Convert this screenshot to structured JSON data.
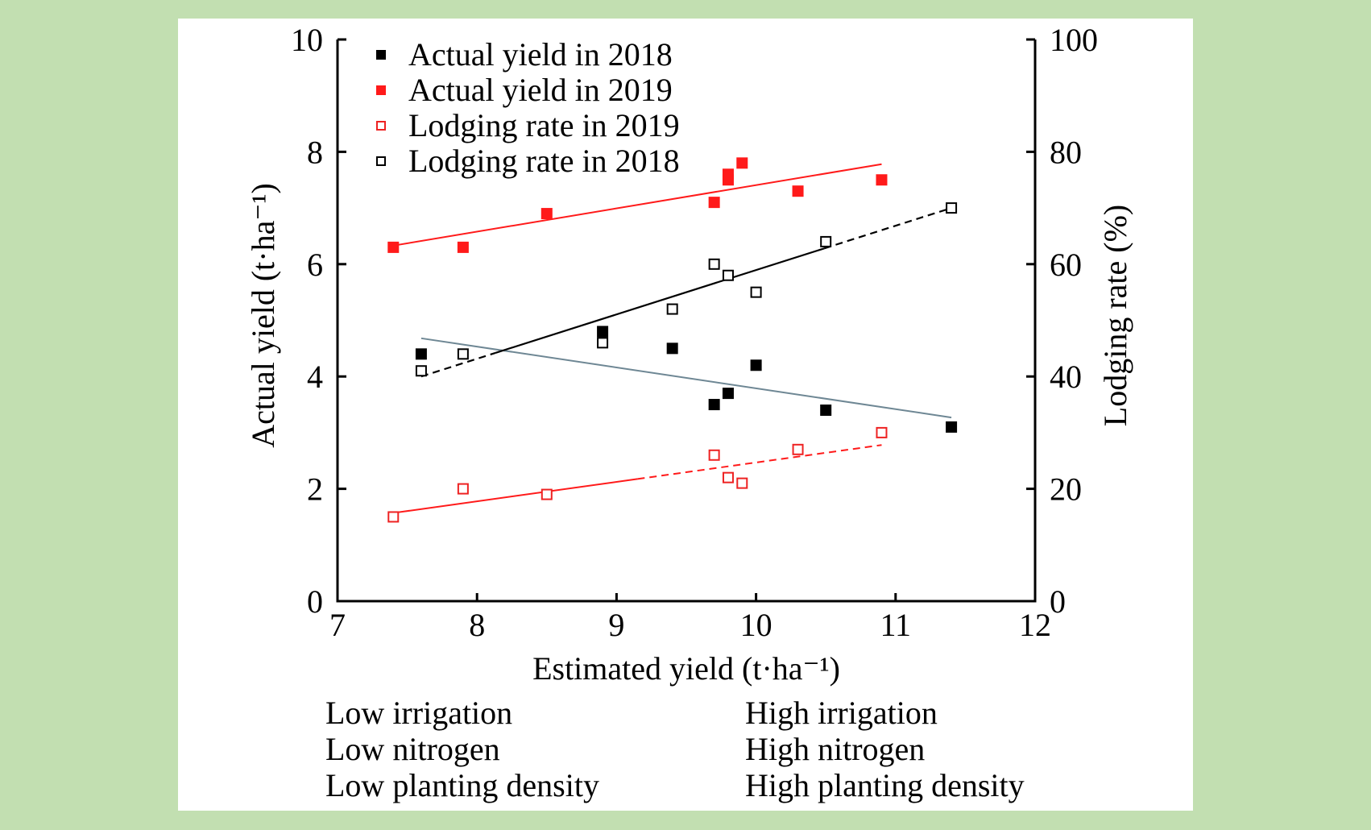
{
  "chart_data": {
    "type": "scatter",
    "title": "",
    "xlabel": "Estimated yield (t·ha⁻¹)",
    "ylabel_left": "Actual yield (t·ha⁻¹)",
    "ylabel_right": "Lodging rate (%)",
    "xlim": [
      7,
      12
    ],
    "ylim_left": [
      0,
      10
    ],
    "ylim_right": [
      0,
      100
    ],
    "x_ticks": [
      "7",
      "8",
      "9",
      "10",
      "11",
      "12"
    ],
    "y_left_ticks": [
      "0",
      "2",
      "4",
      "6",
      "8",
      "10"
    ],
    "y_right_ticks": [
      "0",
      "20",
      "40",
      "60",
      "80",
      "100"
    ],
    "grid": false,
    "legend_position": "top-left",
    "series": [
      {
        "name": "Actual yield in 2018",
        "axis": "left",
        "marker": "filled-square",
        "color": "#000000",
        "x": [
          7.6,
          8.9,
          9.4,
          9.7,
          9.8,
          10.0,
          10.5,
          11.4
        ],
        "y": [
          4.4,
          4.8,
          4.5,
          3.5,
          3.7,
          4.2,
          3.4,
          3.1
        ],
        "trendline": {
          "x": [
            7.6,
            11.4
          ],
          "y": [
            4.68,
            3.27
          ],
          "color": "#6e8794",
          "style": "solid"
        }
      },
      {
        "name": "Actual yield in 2019",
        "axis": "left",
        "marker": "filled-square",
        "color": "#ff1a1a",
        "x": [
          7.4,
          7.9,
          8.5,
          9.7,
          9.8,
          9.8,
          9.9,
          10.3,
          10.9
        ],
        "y": [
          6.3,
          6.3,
          6.9,
          7.1,
          7.5,
          7.6,
          7.8,
          7.3,
          7.5
        ],
        "trendline": {
          "x": [
            7.4,
            10.9
          ],
          "y": [
            6.33,
            7.78
          ],
          "color": "#ff1a1a",
          "style": "solid"
        }
      },
      {
        "name": "Lodging rate in 2019",
        "axis": "right",
        "marker": "open-square",
        "color": "#ee2222",
        "x": [
          7.4,
          7.9,
          8.5,
          9.7,
          9.8,
          9.9,
          10.3,
          10.9
        ],
        "y": [
          15,
          20,
          19,
          26,
          22,
          21,
          27,
          30
        ],
        "trendline": {
          "x": [
            7.4,
            10.9
          ],
          "y": [
            15.7,
            27.8
          ],
          "color": "#ff1a1a",
          "style": "solid-then-dashed"
        }
      },
      {
        "name": "Lodging rate in 2018",
        "axis": "right",
        "marker": "open-square",
        "color": "#000000",
        "x": [
          7.6,
          7.9,
          8.9,
          9.4,
          9.7,
          9.8,
          10.0,
          10.5,
          11.4
        ],
        "y": [
          41,
          44,
          46,
          52,
          60,
          58,
          55,
          64,
          70
        ],
        "trendline": {
          "x": [
            7.6,
            11.4
          ],
          "y": [
            40,
            70
          ],
          "color": "#000000",
          "style": "dashed-solid-dashed"
        }
      }
    ]
  },
  "notes": {
    "low": [
      "Low irrigation",
      "Low nitrogen",
      "Low planting density"
    ],
    "high": [
      "High irrigation",
      "High nitrogen",
      "High planting density"
    ]
  }
}
